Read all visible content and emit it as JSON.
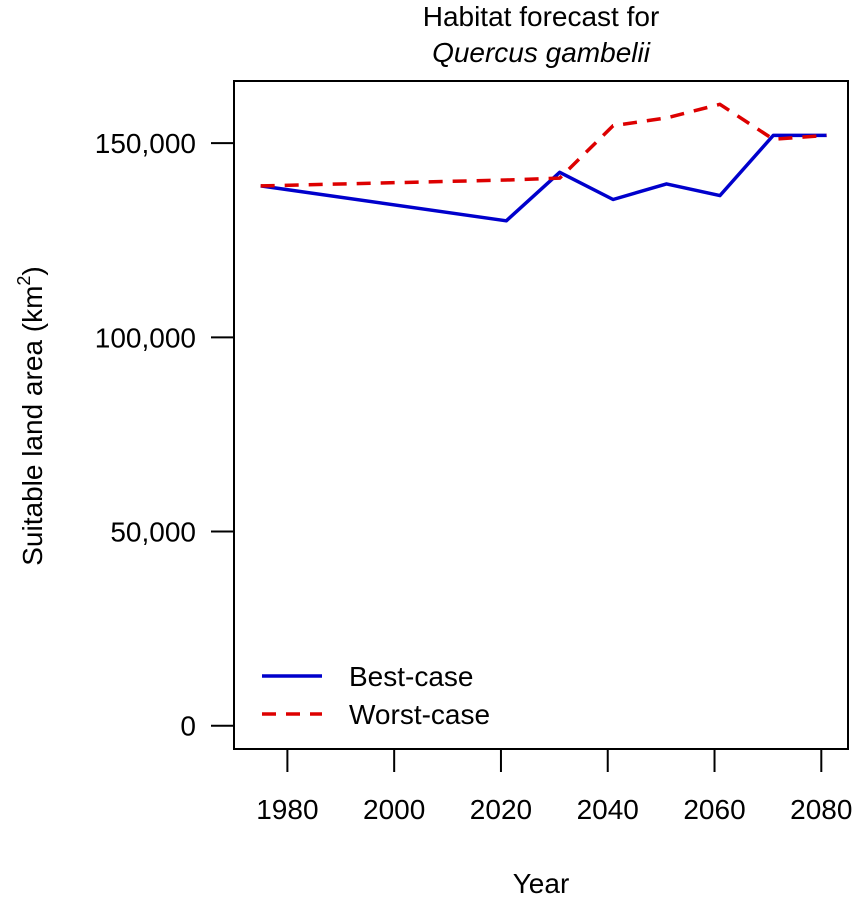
{
  "chart_data": {
    "type": "line",
    "title": "Habitat forecast for",
    "subtitle": "Quercus gambelii",
    "xlabel": "Year",
    "ylabel_main": "Suitable land area (km",
    "ylabel_sup": "2",
    "ylabel_close": ")",
    "xlim": [
      1970,
      2085
    ],
    "ylim": [
      -6000,
      166000
    ],
    "x_ticks": [
      1980,
      2000,
      2020,
      2040,
      2060,
      2080
    ],
    "x_tick_labels": [
      "1980",
      "2000",
      "2020",
      "2040",
      "2060",
      "2080"
    ],
    "y_ticks": [
      0,
      50000,
      100000,
      150000
    ],
    "y_tick_labels": [
      "0",
      "50,000",
      "100,000",
      "150,000"
    ],
    "grid": false,
    "legend_position": "bottom-left",
    "series": [
      {
        "name": "Best-case",
        "color": "#0000CC",
        "style": "solid",
        "x": [
          1975,
          2021,
          2031,
          2041,
          2051,
          2061,
          2071,
          2081
        ],
        "values": [
          139000,
          130000,
          142500,
          135500,
          139500,
          136500,
          152000,
          152000
        ]
      },
      {
        "name": "Worst-case",
        "color": "#DD0000",
        "style": "dashed",
        "x": [
          1975,
          2021,
          2031,
          2041,
          2051,
          2061,
          2071,
          2081
        ],
        "values": [
          139000,
          140500,
          141000,
          154500,
          156500,
          160000,
          151000,
          152000
        ]
      }
    ]
  }
}
